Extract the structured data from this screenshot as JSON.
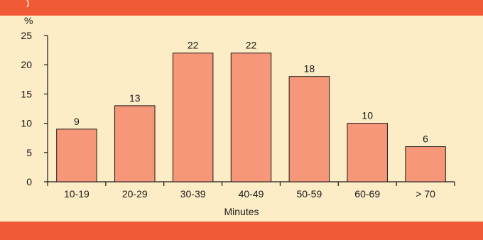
{
  "colors": {
    "background": "#fdedc6",
    "band": "#f15a36",
    "bar_fill": "#f7977a",
    "bar_stroke": "#1a1a1a",
    "axis": "#1a1a1a"
  },
  "chart_data": {
    "type": "bar",
    "title": "",
    "ylabel": "%",
    "xlabel": "Minutes",
    "categories": [
      "10-19",
      "20-29",
      "30-39",
      "40-49",
      "50-59",
      "60-69",
      "> 70"
    ],
    "values": [
      9,
      13,
      22,
      22,
      18,
      10,
      6
    ],
    "data_labels": [
      "9",
      "13",
      "22",
      "22",
      "18",
      "10",
      "6"
    ],
    "ylim": [
      0,
      25
    ],
    "yticks": [
      0,
      5,
      10,
      15,
      20,
      25
    ],
    "ytick_labels": [
      "0",
      "5",
      "10",
      "15",
      "20",
      "25"
    ],
    "grid": false,
    "legend": "none"
  }
}
